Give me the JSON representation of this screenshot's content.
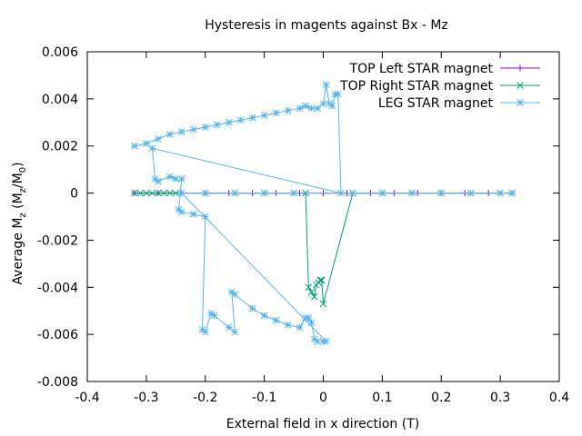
{
  "chart_data": {
    "type": "scatter",
    "title": "Hysteresis in magents against Bx - Mz",
    "xlabel": "External field in x direction (T)",
    "ylabel": {
      "main": "Average M",
      "sub": "z",
      "open": " (M",
      "sub2": "z",
      "slash": "/M",
      "sub3": "0",
      "close": ")"
    },
    "xlim": [
      -0.4,
      0.4
    ],
    "ylim": [
      -0.008,
      0.006
    ],
    "xticks": [
      -0.4,
      -0.3,
      -0.2,
      -0.1,
      0,
      0.1,
      0.2,
      0.3,
      0.4
    ],
    "xtick_labels": [
      "-0.4",
      "-0.3",
      "-0.2",
      "-0.1",
      "0",
      "0.1",
      "0.2",
      "0.3",
      "0.4"
    ],
    "yticks": [
      -0.008,
      -0.006,
      -0.004,
      -0.002,
      0,
      0.002,
      0.004,
      0.006
    ],
    "ytick_labels": [
      "-0.008",
      "-0.006",
      "-0.004",
      "-0.002",
      "0",
      "0.002",
      "0.004",
      "0.006"
    ],
    "grid": false,
    "legend_position": "top-right",
    "series": [
      {
        "name": "TOP Left STAR magnet",
        "color": "#9400d3",
        "marker": "plus",
        "x": [
          -0.32,
          -0.28,
          -0.24,
          -0.2,
          -0.16,
          -0.12,
          -0.08,
          -0.04,
          0,
          0.04,
          0.08,
          0.12,
          0.16,
          0.2,
          0.24,
          0.28,
          0.32
        ],
        "y": [
          0,
          0,
          0,
          0,
          0,
          0,
          0,
          0,
          0,
          0,
          0,
          0,
          0,
          0,
          0,
          0,
          0
        ]
      },
      {
        "name": "TOP Right STAR magnet",
        "color": "#009e73",
        "marker": "x",
        "x": [
          -0.32,
          -0.31,
          -0.3,
          -0.29,
          -0.28,
          -0.27,
          -0.26,
          -0.25,
          -0.2,
          -0.15,
          -0.1,
          -0.05,
          -0.03,
          -0.025,
          -0.02,
          -0.015,
          -0.012,
          -0.008,
          -0.005,
          -0.003,
          0.0,
          0.05,
          0.1,
          0.15,
          0.2,
          0.25,
          0.3,
          0.32
        ],
        "y": [
          0,
          0,
          0,
          0,
          0,
          0,
          0,
          0,
          0,
          0,
          0,
          0,
          0,
          -0.004,
          -0.0042,
          -0.0044,
          -0.0039,
          -0.0038,
          -0.0037,
          -0.0037,
          -0.0047,
          0,
          0,
          0,
          0,
          0,
          0,
          0
        ]
      },
      {
        "name": "LEG STAR magnet",
        "color": "#56b4e9",
        "marker": "star",
        "x": [
          -0.32,
          -0.3,
          -0.28,
          -0.26,
          -0.24,
          -0.22,
          -0.2,
          -0.18,
          -0.16,
          -0.14,
          -0.12,
          -0.1,
          -0.08,
          -0.06,
          -0.04,
          -0.03,
          -0.02,
          -0.01,
          0.0,
          0.005,
          0.01,
          0.015,
          0.02,
          0.025,
          0.03,
          -0.29,
          -0.285,
          -0.28,
          -0.26,
          -0.25,
          -0.24,
          -0.245,
          -0.24,
          -0.22,
          -0.2,
          -0.205,
          -0.2,
          -0.19,
          -0.185,
          -0.16,
          -0.15,
          -0.155,
          -0.15,
          -0.12,
          -0.1,
          -0.08,
          -0.06,
          -0.04,
          -0.03,
          -0.025,
          -0.02,
          -0.015,
          -0.01,
          0.0,
          0.005,
          -0.24,
          -0.2,
          -0.15,
          -0.1,
          -0.05,
          0.05,
          0.1,
          0.15,
          0.2,
          0.25,
          0.3,
          0.32
        ],
        "y": [
          0.002,
          0.0021,
          0.0023,
          0.0025,
          0.0026,
          0.0027,
          0.0028,
          0.0029,
          0.003,
          0.0031,
          0.0032,
          0.0033,
          0.0034,
          0.0035,
          0.0036,
          0.0037,
          0.0036,
          0.0036,
          0.0038,
          0.0046,
          0.0038,
          0.0037,
          0.0042,
          0.0042,
          0.0,
          0.0019,
          0.0006,
          0.0005,
          0.0007,
          0.0006,
          0.0006,
          -0.0007,
          -0.0008,
          -0.0009,
          -0.001,
          -0.0058,
          -0.0059,
          -0.0051,
          -0.0052,
          -0.0057,
          -0.0059,
          -0.0042,
          -0.0043,
          -0.0049,
          -0.0052,
          -0.0054,
          -0.0056,
          -0.0057,
          -0.0053,
          -0.0053,
          -0.0055,
          -0.0062,
          -0.0063,
          -0.0063,
          -0.0063,
          0,
          0,
          0,
          0,
          0,
          0,
          0,
          0,
          0,
          0,
          0,
          0
        ]
      }
    ]
  }
}
